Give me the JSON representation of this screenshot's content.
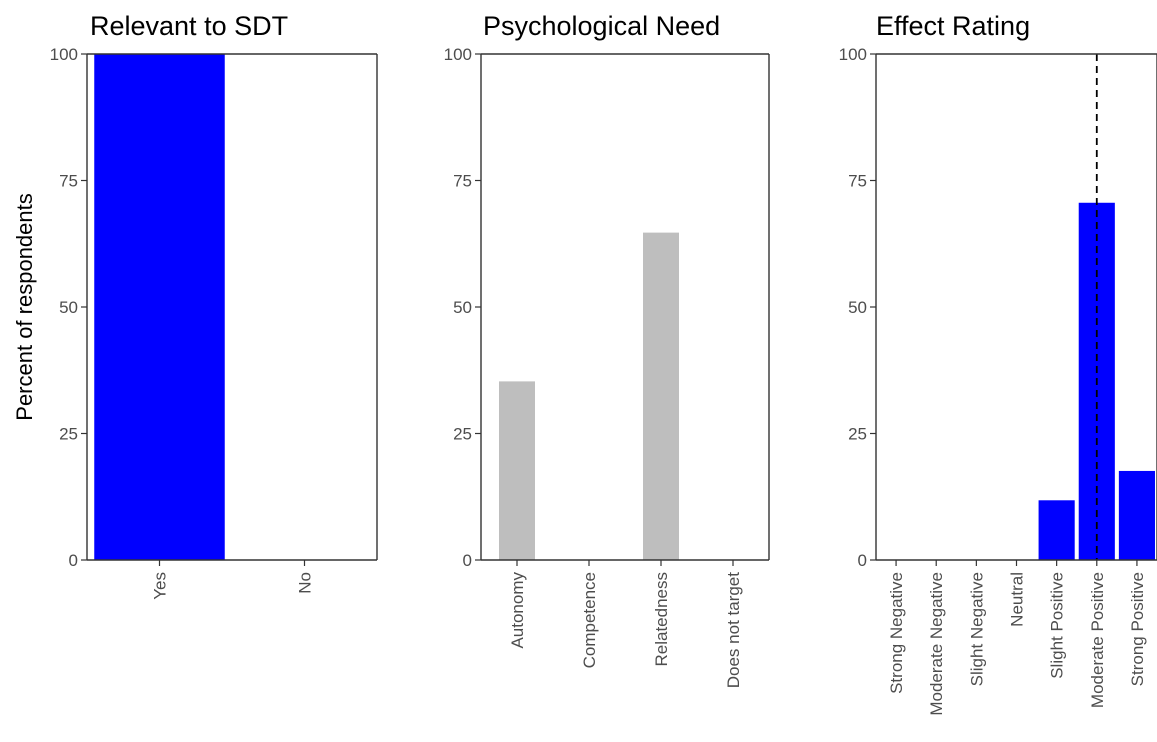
{
  "figure": {
    "ylabel": "Percent of respondents"
  },
  "chart_data": [
    {
      "type": "bar",
      "title": "Relevant to SDT",
      "xlabel": "",
      "ylabel": "Percent of respondents",
      "ylim": [
        0,
        100
      ],
      "yticks": [
        0,
        25,
        50,
        75,
        100
      ],
      "categories": [
        "Yes",
        "No"
      ],
      "values": [
        100,
        0
      ],
      "bar_colors": [
        "#0000ff",
        "#0000ff"
      ],
      "grid": false
    },
    {
      "type": "bar",
      "title": "Psychological Need",
      "xlabel": "",
      "ylabel": "",
      "ylim": [
        0,
        100
      ],
      "yticks": [
        0,
        25,
        50,
        75,
        100
      ],
      "categories": [
        "Autonomy",
        "Competence",
        "Relatedness",
        "Does not target"
      ],
      "values": [
        35.3,
        0,
        64.7,
        0
      ],
      "bar_colors": [
        "#bebebe",
        "#bebebe",
        "#bebebe",
        "#bebebe"
      ],
      "grid": false
    },
    {
      "type": "bar",
      "title": "Effect Rating",
      "xlabel": "",
      "ylabel": "",
      "ylim": [
        0,
        100
      ],
      "yticks": [
        0,
        25,
        50,
        75,
        100
      ],
      "categories": [
        "Strong Negative",
        "Moderate Negative",
        "Slight Negative",
        "Neutral",
        "Slight Positive",
        "Moderate Positive",
        "Strong Positive"
      ],
      "values": [
        0,
        0,
        0,
        0,
        11.8,
        70.6,
        17.6
      ],
      "bar_colors": [
        "#0000ff",
        "#0000ff",
        "#0000ff",
        "#0000ff",
        "#0000ff",
        "#0000ff",
        "#0000ff"
      ],
      "reference_line": {
        "category": "Moderate Positive",
        "style": "dashed"
      },
      "grid": false
    }
  ]
}
